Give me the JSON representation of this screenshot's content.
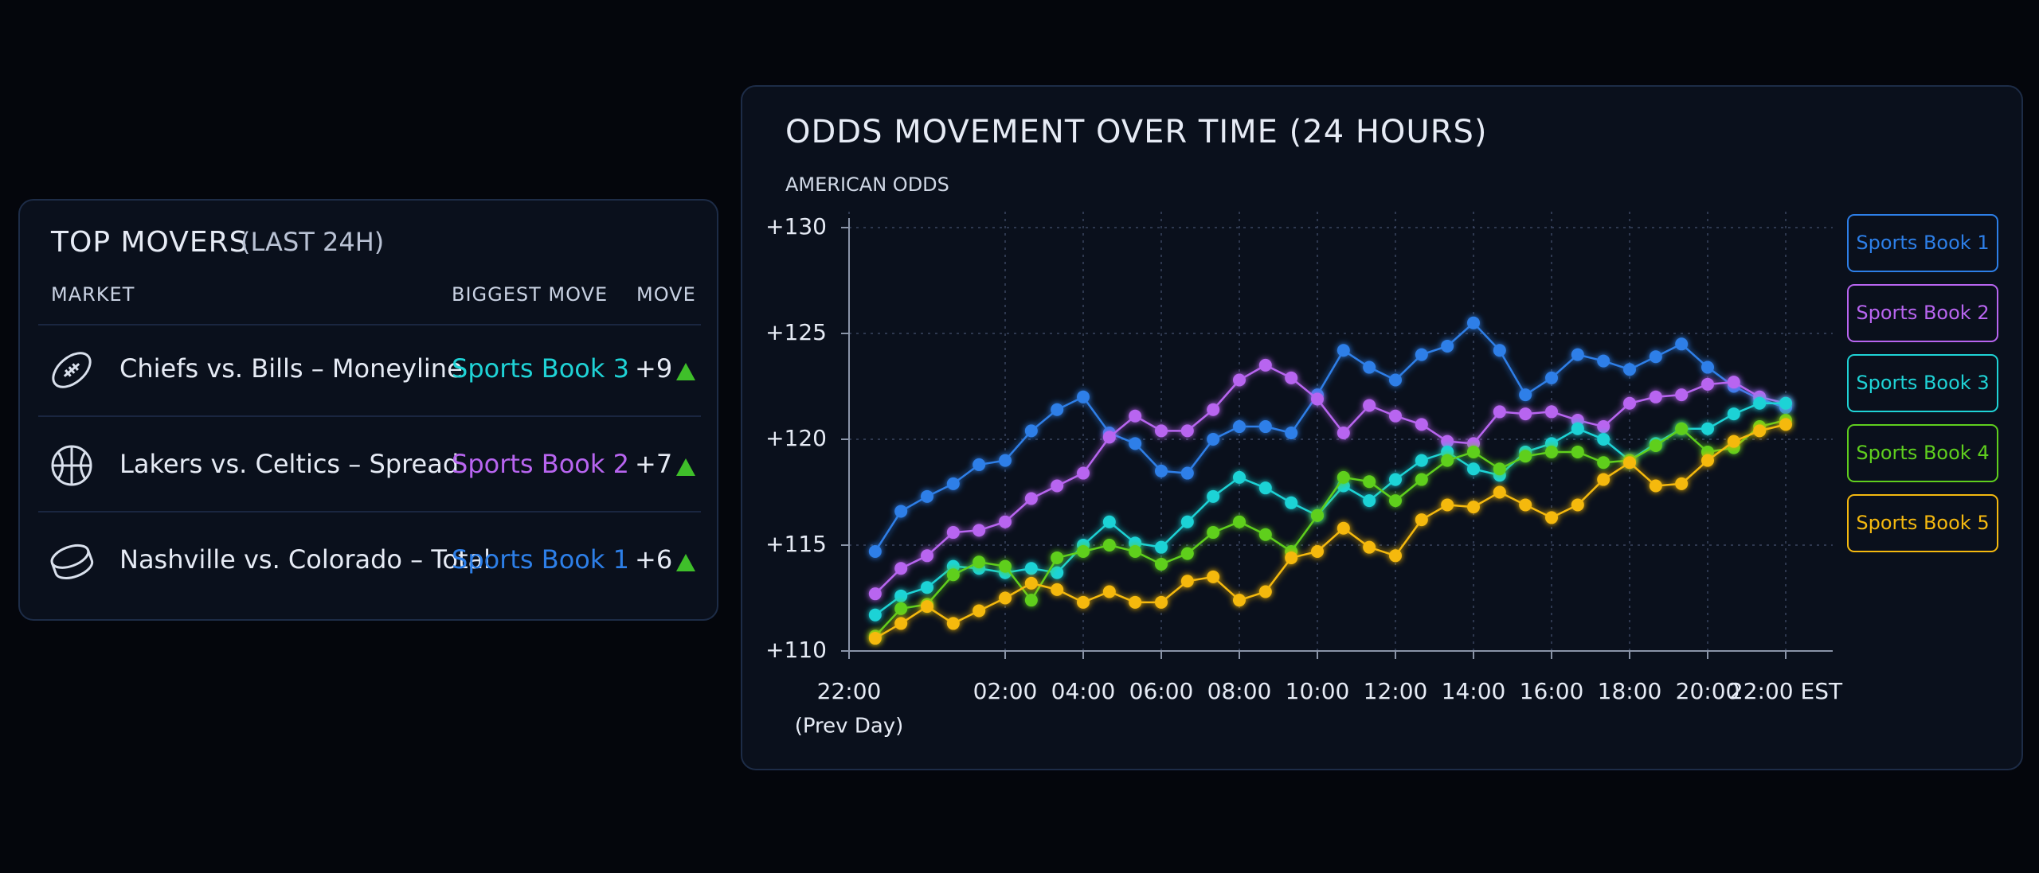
{
  "top_movers": {
    "title": "TOP MOVERS",
    "subtitle": "(LAST 24H)",
    "columns": [
      "MARKET",
      "BIGGEST MOVE",
      "MOVE"
    ],
    "rows": [
      {
        "market": "Chiefs vs. Bills – Moneyline",
        "book": "Sports Book 3",
        "move": "+9"
      },
      {
        "market": "Lakers vs. Celtics – Spread",
        "book": "Sports Book 2",
        "move": "+7"
      },
      {
        "market": "Nashville vs. Colorado – Total",
        "book": "Sports Book 1",
        "move": "+6"
      }
    ]
  },
  "chart_data": {
    "type": "line",
    "title": "ODDS MOVEMENT OVER TIME (24 HOURS)",
    "y_label": "AMERICAN ODDS",
    "x_start_note": "(Prev Day)",
    "xlim": [
      0,
      25
    ],
    "xticks": [
      {
        "value": 0,
        "label": "22:00"
      },
      {
        "value": 4,
        "label": "02:00"
      },
      {
        "value": 6,
        "label": "04:00"
      },
      {
        "value": 8,
        "label": "06:00"
      },
      {
        "value": 10,
        "label": "08:00"
      },
      {
        "value": 12,
        "label": "10:00"
      },
      {
        "value": 14,
        "label": "12:00"
      },
      {
        "value": 16,
        "label": "14:00"
      },
      {
        "value": 18,
        "label": "16:00"
      },
      {
        "value": 20,
        "label": "18:00"
      },
      {
        "value": 22,
        "label": "20:00"
      },
      {
        "value": 24,
        "label": "22:00 EST"
      }
    ],
    "ylim": [
      110,
      130
    ],
    "yticks": [
      {
        "value": 110,
        "label": "+110"
      },
      {
        "value": 115,
        "label": "+115"
      },
      {
        "value": 120,
        "label": "+120"
      },
      {
        "value": 125,
        "label": "+125"
      },
      {
        "value": 130,
        "label": "+130"
      }
    ],
    "grid": true,
    "x": [
      0.67,
      1.33,
      2,
      2.67,
      3.33,
      4,
      4.67,
      5.33,
      6,
      6.67,
      7.33,
      8,
      8.67,
      9.33,
      10,
      10.67,
      11.33,
      12,
      12.67,
      13.33,
      14,
      14.67,
      15.33,
      16,
      16.67,
      17.33,
      18,
      18.67,
      19.33,
      20,
      20.67,
      21.33,
      22,
      22.67,
      23.33,
      24
    ],
    "series": [
      {
        "name": "Sports Book 1",
        "color": "#2d7fe8",
        "values": [
          114.7,
          116.6,
          117.3,
          117.9,
          118.8,
          119,
          120.4,
          121.4,
          122,
          120.3,
          119.8,
          118.5,
          118.4,
          120,
          120.6,
          120.6,
          120.3,
          122.1,
          124.2,
          123.4,
          122.8,
          124,
          124.4,
          125.5,
          124.2,
          122.1,
          122.9,
          124,
          123.7,
          123.3,
          123.9,
          124.5,
          123.4,
          122.5,
          121.9,
          121.5
        ]
      },
      {
        "name": "Sports Book 2",
        "color": "#b865f0",
        "values": [
          112.7,
          113.9,
          114.5,
          115.6,
          115.7,
          116.1,
          117.2,
          117.8,
          118.4,
          120.1,
          121.1,
          120.4,
          120.4,
          121.4,
          122.8,
          123.5,
          122.9,
          121.9,
          120.3,
          121.6,
          121.1,
          120.7,
          119.9,
          119.8,
          121.3,
          121.2,
          121.3,
          120.9,
          120.6,
          121.7,
          122,
          122.1,
          122.6,
          122.7,
          122,
          121.7
        ]
      },
      {
        "name": "Sports Book 3",
        "color": "#1fd3d6",
        "values": [
          111.7,
          112.6,
          113,
          114,
          113.9,
          113.7,
          113.9,
          113.7,
          115,
          116.1,
          115.1,
          114.9,
          116.1,
          117.3,
          118.2,
          117.7,
          117,
          116.4,
          117.8,
          117.1,
          118.1,
          119,
          119.4,
          118.6,
          118.3,
          119.4,
          119.8,
          120.5,
          120,
          119,
          119.8,
          120.5,
          120.5,
          121.2,
          121.7,
          121.7
        ]
      },
      {
        "name": "Sports Book 4",
        "color": "#5fcf1e",
        "values": [
          110.7,
          112,
          112.2,
          113.6,
          114.2,
          114,
          112.4,
          114.4,
          114.7,
          115,
          114.7,
          114.1,
          114.6,
          115.6,
          116.1,
          115.5,
          114.7,
          116.4,
          118.2,
          118,
          117.1,
          118.1,
          119,
          119.4,
          118.6,
          119.2,
          119.4,
          119.4,
          118.9,
          119,
          119.7,
          120.5,
          119.4,
          119.6,
          120.6,
          120.9
        ]
      },
      {
        "name": "Sports Book 5",
        "color": "#f5b90f",
        "values": [
          110.6,
          111.3,
          112.1,
          111.3,
          111.9,
          112.5,
          113.2,
          112.9,
          112.3,
          112.8,
          112.3,
          112.3,
          113.3,
          113.5,
          112.4,
          112.8,
          114.4,
          114.7,
          115.8,
          114.9,
          114.5,
          116.2,
          116.9,
          116.8,
          117.5,
          116.9,
          116.3,
          116.9,
          118.1,
          118.9,
          117.8,
          117.9,
          119,
          119.9,
          120.4,
          120.7
        ]
      }
    ]
  }
}
